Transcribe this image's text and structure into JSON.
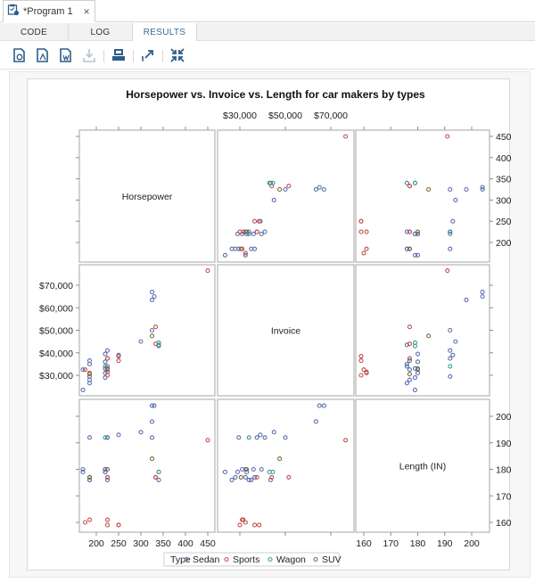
{
  "window": {
    "tab_title": "*Program 1",
    "close_label": "×"
  },
  "subtabs": [
    {
      "label": "CODE",
      "active": false
    },
    {
      "label": "LOG",
      "active": false
    },
    {
      "label": "RESULTS",
      "active": true
    }
  ],
  "toolbar": {
    "buttons": [
      {
        "icon": "download-html-icon"
      },
      {
        "icon": "download-pdf-icon"
      },
      {
        "icon": "download-rtf-icon"
      },
      {
        "icon": "download-disabled-icon"
      },
      {
        "icon": "print-icon"
      },
      {
        "icon": "open-new-window-icon"
      },
      {
        "icon": "collapse-icon"
      }
    ]
  },
  "colors": {
    "Sedan": "#5a6fb0",
    "Sports": "#c0504d",
    "Wagon": "#3f9a8c",
    "SUV": "#7f6a3c",
    "panel_border": "#b5b5b5",
    "axis": "#8c8c8c",
    "text": "#222222"
  },
  "chart_data": {
    "type": "scatter",
    "subtype": "scatterplot-matrix",
    "title": "Horsepower vs. Invoice vs. Length for car makers by types",
    "variables": [
      "Horsepower",
      "Invoice",
      "Length (IN)"
    ],
    "diagonal_labels": [
      "Horsepower",
      "Invoice",
      "Length (IN)"
    ],
    "axes": {
      "Horsepower": {
        "ticks": [
          200,
          250,
          300,
          350,
          400,
          450
        ],
        "tick_labels": [
          "200",
          "250",
          "300",
          "350",
          "400",
          "450"
        ],
        "range": [
          160,
          460
        ]
      },
      "Invoice": {
        "ticks": [
          30000,
          40000,
          50000,
          60000,
          70000
        ],
        "tick_labels": [
          "$30,000",
          "$40,000",
          "$50,000",
          "$60,000",
          "$70,000"
        ],
        "top_tick_labels": [
          "$30,000",
          "$50,000",
          "$70,000"
        ],
        "range": [
          22000,
          78000
        ]
      },
      "Length (IN)": {
        "ticks": [
          160,
          170,
          180,
          190,
          200
        ],
        "tick_labels": [
          "160",
          "170",
          "180",
          "190",
          "200"
        ],
        "range": [
          157,
          205
        ]
      }
    },
    "legend": {
      "title": "Type",
      "position": "bottom",
      "entries": [
        "Sedan",
        "Sports",
        "Wagon",
        "SUV"
      ]
    },
    "grid": false,
    "points": [
      {
        "type": "Sedan",
        "hp": 170,
        "invoice": 23500,
        "length": 179
      },
      {
        "type": "Sedan",
        "hp": 170,
        "invoice": 32500,
        "length": 180
      },
      {
        "type": "Sedan",
        "hp": 185,
        "invoice": 26500,
        "length": 176
      },
      {
        "type": "Sedan",
        "hp": 185,
        "invoice": 28000,
        "length": 177
      },
      {
        "type": "Sedan",
        "hp": 185,
        "invoice": 29500,
        "length": 192
      },
      {
        "type": "Sedan",
        "hp": 185,
        "invoice": 35000,
        "length": 176
      },
      {
        "type": "Sedan",
        "hp": 185,
        "invoice": 36500,
        "length": 177
      },
      {
        "type": "Sedan",
        "hp": 220,
        "invoice": 29000,
        "length": 179
      },
      {
        "type": "Sedan",
        "hp": 220,
        "invoice": 31000,
        "length": 180
      },
      {
        "type": "Sedan",
        "hp": 220,
        "invoice": 33000,
        "length": 179
      },
      {
        "type": "Sedan",
        "hp": 220,
        "invoice": 36000,
        "length": 180
      },
      {
        "type": "Sedan",
        "hp": 220,
        "invoice": 39500,
        "length": 180
      },
      {
        "type": "Sedan",
        "hp": 225,
        "invoice": 32500,
        "length": 177
      },
      {
        "type": "Sedan",
        "hp": 225,
        "invoice": 34000,
        "length": 176
      },
      {
        "type": "Sedan",
        "hp": 225,
        "invoice": 37500,
        "length": 192
      },
      {
        "type": "Sedan",
        "hp": 225,
        "invoice": 41000,
        "length": 192
      },
      {
        "type": "Sedan",
        "hp": 250,
        "invoice": 39000,
        "length": 193
      },
      {
        "type": "Sedan",
        "hp": 300,
        "invoice": 45000,
        "length": 194
      },
      {
        "type": "Sedan",
        "hp": 325,
        "invoice": 50000,
        "length": 192
      },
      {
        "type": "Sedan",
        "hp": 325,
        "invoice": 63500,
        "length": 198
      },
      {
        "type": "Sedan",
        "hp": 325,
        "invoice": 67000,
        "length": 204
      },
      {
        "type": "Sedan",
        "hp": 330,
        "invoice": 65000,
        "length": 204
      },
      {
        "type": "Sedan",
        "hp": 340,
        "invoice": 43500,
        "length": 176
      },
      {
        "type": "Sports",
        "hp": 175,
        "invoice": 32500,
        "length": 160
      },
      {
        "type": "Sports",
        "hp": 185,
        "invoice": 31000,
        "length": 161
      },
      {
        "type": "Sports",
        "hp": 225,
        "invoice": 31500,
        "length": 161
      },
      {
        "type": "Sports",
        "hp": 225,
        "invoice": 30000,
        "length": 159
      },
      {
        "type": "Sports",
        "hp": 250,
        "invoice": 36500,
        "length": 159
      },
      {
        "type": "Sports",
        "hp": 250,
        "invoice": 38500,
        "length": 159
      },
      {
        "type": "Sports",
        "hp": 225,
        "invoice": 37500,
        "length": 177
      },
      {
        "type": "Sports",
        "hp": 333,
        "invoice": 44000,
        "length": 177
      },
      {
        "type": "Sports",
        "hp": 333,
        "invoice": 51500,
        "length": 177
      },
      {
        "type": "Sports",
        "hp": 450,
        "invoice": 76500,
        "length": 191
      },
      {
        "type": "Wagon",
        "hp": 220,
        "invoice": 34000,
        "length": 192
      },
      {
        "type": "Wagon",
        "hp": 340,
        "invoice": 44500,
        "length": 179
      },
      {
        "type": "Wagon",
        "hp": 340,
        "invoice": 43000,
        "length": 179
      },
      {
        "type": "SUV",
        "hp": 185,
        "invoice": 30500,
        "length": 177
      },
      {
        "type": "SUV",
        "hp": 225,
        "invoice": 33000,
        "length": 180
      },
      {
        "type": "SUV",
        "hp": 325,
        "invoice": 47500,
        "length": 184
      }
    ]
  }
}
